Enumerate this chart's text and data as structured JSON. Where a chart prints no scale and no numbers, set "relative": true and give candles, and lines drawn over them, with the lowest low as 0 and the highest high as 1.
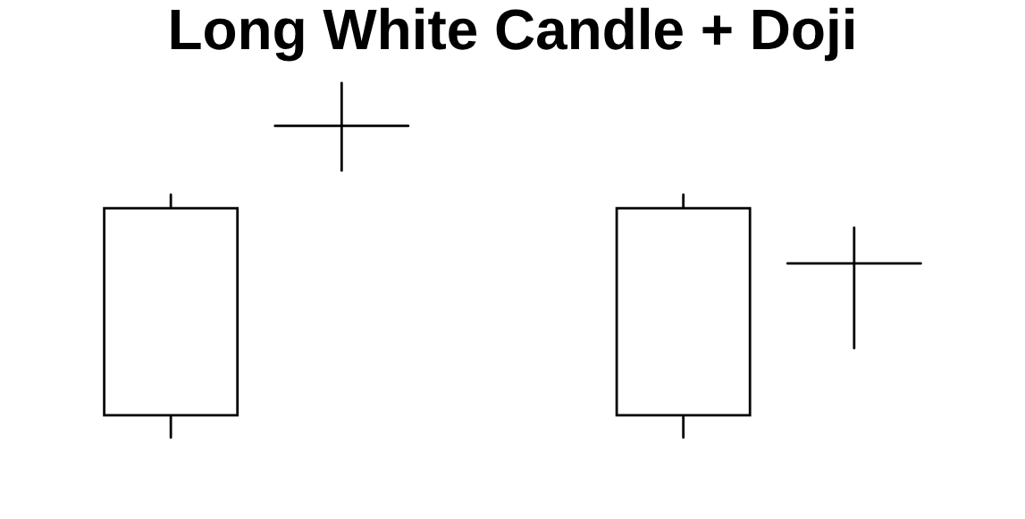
{
  "chart_data": {
    "type": "candlestick",
    "title": "Long White Candle + Doji",
    "relative": true,
    "categories": [
      null,
      null,
      null,
      null,
      null
    ],
    "ohlc": [
      [
        0.063,
        0.685,
        0,
        0.647
      ],
      [
        0.879,
        1,
        0.753,
        0.879
      ],
      null,
      [
        0.063,
        0.685,
        0,
        0.647
      ],
      [
        0.491,
        0.592,
        0.252,
        0.491
      ]
    ]
  }
}
